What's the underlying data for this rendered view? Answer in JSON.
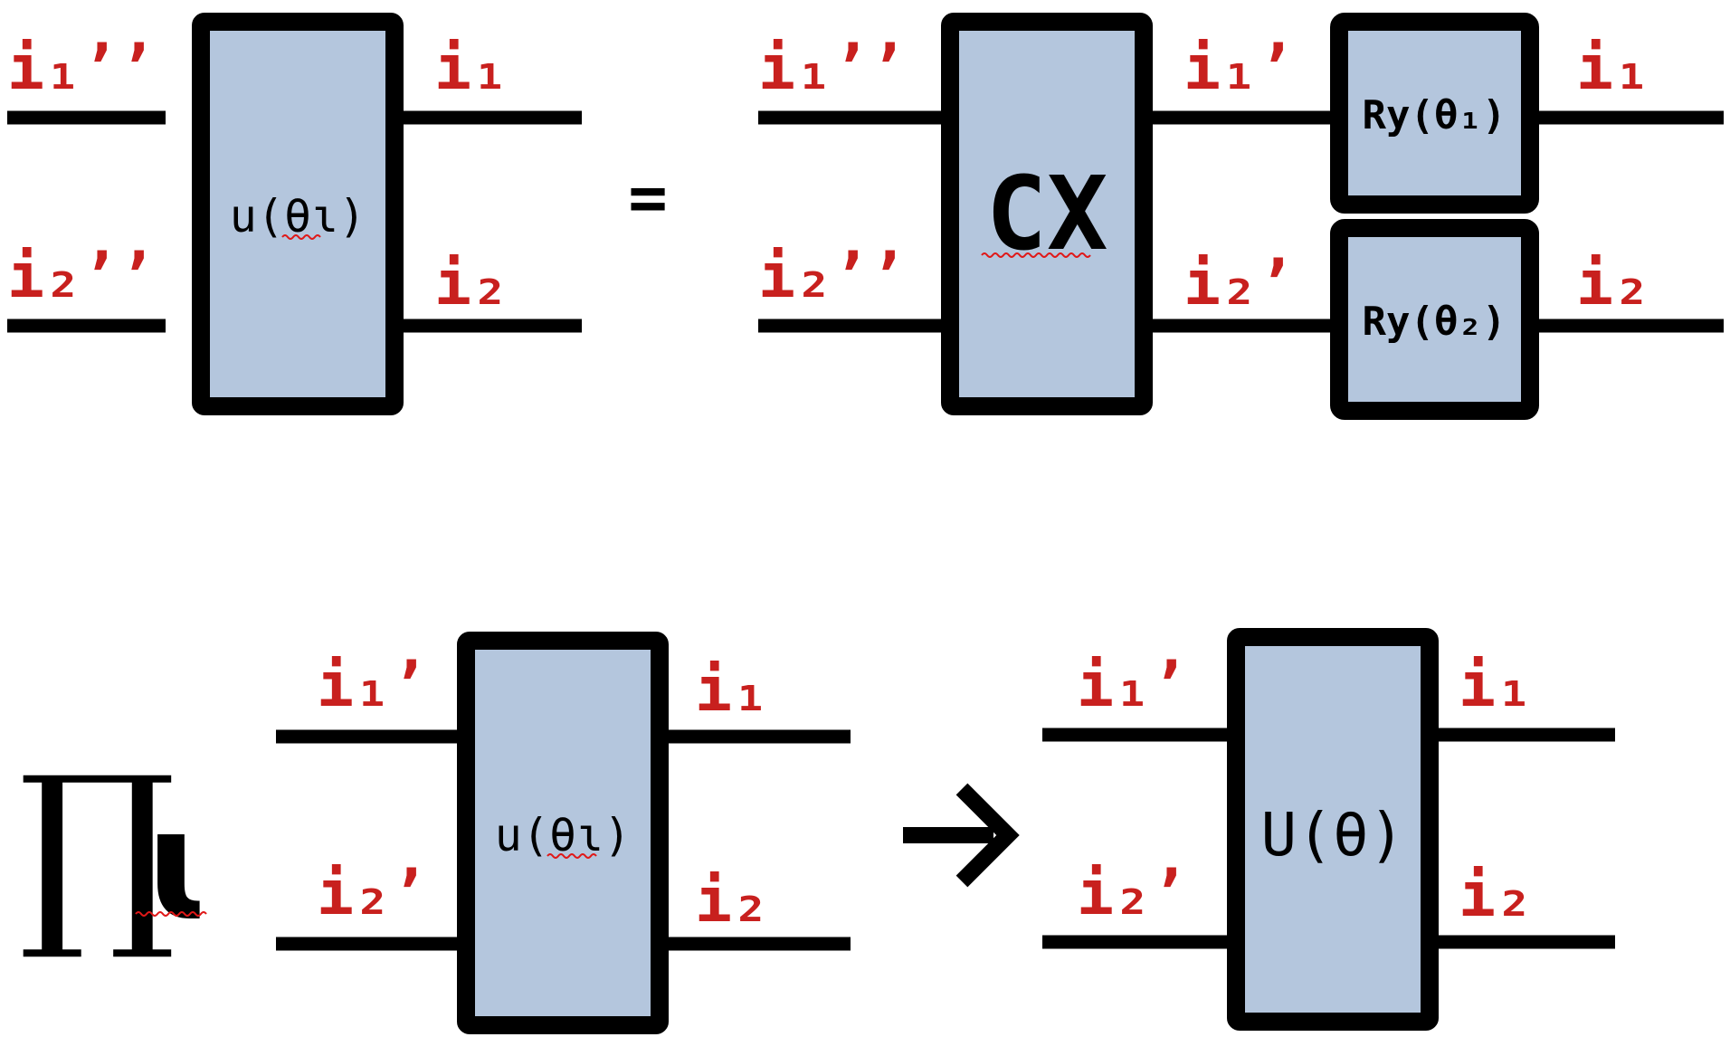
{
  "colors": {
    "label": "#c8201e",
    "gate_fill": "#b4c6dd",
    "stroke": "#000000",
    "spellcheck": "#e01818"
  },
  "top": {
    "left": {
      "in_top": "i₁’’",
      "in_bot": "i₂’’",
      "out_top": "i₁",
      "out_bot": "i₂",
      "gate": "u(θɩ)"
    },
    "equals": "=",
    "right": {
      "in_top": "i₁’’",
      "in_bot": "i₂’’",
      "mid_top": "i₁’",
      "mid_bot": "i₂’",
      "out_top": "i₁",
      "out_bot": "i₂",
      "cx_gate": "CX",
      "ry_top": "Ry(θ₁)",
      "ry_bot": "Ry(θ₂)"
    }
  },
  "bottom": {
    "product_symbol": "∏",
    "product_index": "ɩ",
    "left": {
      "in_top": "i₁’",
      "in_bot": "i₂’",
      "out_top": "i₁",
      "out_bot": "i₂",
      "gate": "u(θɩ)"
    },
    "arrow": "→",
    "right": {
      "in_top": "i₁’",
      "in_bot": "i₂’",
      "out_top": "i₁",
      "out_bot": "i₂",
      "gate": "U(θ)"
    }
  }
}
